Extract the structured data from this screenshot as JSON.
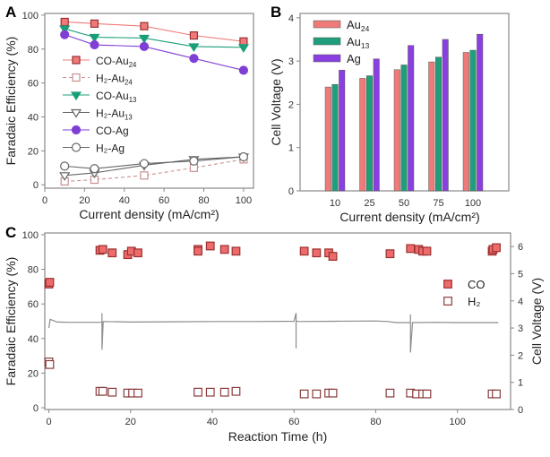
{
  "chart_data": [
    {
      "panel": "A",
      "type": "line",
      "xlabel": "Current density (mA/cm²)",
      "ylabel": "Faradaic Efficiency (%)",
      "xlim": [
        0,
        105
      ],
      "ylim": [
        -2,
        101
      ],
      "xticks": [
        0,
        20,
        40,
        60,
        80,
        100
      ],
      "yticks": [
        0,
        20,
        40,
        60,
        80,
        100
      ],
      "x": [
        10,
        25,
        50,
        75,
        100
      ],
      "legend_position": "center-left",
      "series": [
        {
          "name": "CO-Au",
          "sub": "24",
          "values": [
            96,
            95,
            93.5,
            88,
            84.5
          ],
          "color": "#f07a7a",
          "marker": "square-filled",
          "dashed": false
        },
        {
          "name": "H₂-Au",
          "sub": "24",
          "values": [
            2,
            3,
            5.5,
            10,
            15
          ],
          "color": "#c99090",
          "marker": "square-open",
          "dashed": true
        },
        {
          "name": "CO-Au",
          "sub": "13",
          "values": [
            92,
            87,
            86.5,
            81.5,
            81
          ],
          "color": "#1a9e7a",
          "marker": "triangle-filled",
          "dashed": false
        },
        {
          "name": "H₂-Au",
          "sub": "13",
          "values": [
            5.5,
            7,
            11.5,
            15,
            16.5
          ],
          "color": "#666666",
          "marker": "triangle-open",
          "dashed": false
        },
        {
          "name": "CO-Ag",
          "sub": "",
          "values": [
            88.5,
            82.5,
            81.5,
            74.5,
            67.5
          ],
          "color": "#7f3fd4",
          "marker": "circle-filled",
          "dashed": false
        },
        {
          "name": "H₂-Ag",
          "sub": "",
          "values": [
            11,
            9.5,
            12.5,
            14,
            16.5
          ],
          "color": "#666666",
          "marker": "circle-open",
          "dashed": false
        }
      ]
    },
    {
      "panel": "B",
      "type": "bar",
      "xlabel": "Current density (mA/cm²)",
      "ylabel": "Cell Voltage (V)",
      "ylim": [
        0,
        4.1
      ],
      "yticks": [
        0,
        1,
        2,
        3,
        4
      ],
      "categories": [
        "10",
        "25",
        "50",
        "75",
        "100"
      ],
      "legend_position": "top-left",
      "series": [
        {
          "name": "Au",
          "sub": "24",
          "values": [
            2.4,
            2.6,
            2.8,
            2.98,
            3.2
          ],
          "color": "#ee7b78"
        },
        {
          "name": "Au",
          "sub": "13",
          "values": [
            2.46,
            2.66,
            2.91,
            3.09,
            3.25
          ],
          "color": "#1f9e7c"
        },
        {
          "name": "Ag",
          "sub": "",
          "values": [
            2.79,
            3.05,
            3.36,
            3.5,
            3.62
          ],
          "color": "#8a3fe0"
        }
      ]
    },
    {
      "panel": "C",
      "type": "scatter",
      "xlabel": "Reaction Time (h)",
      "ylabel": "Faradaic Efficiency (%)",
      "ylabel_right": "Cell Voltage (V)",
      "xlim": [
        -1,
        113
      ],
      "ylim": [
        -1,
        101
      ],
      "ylim_right": [
        0,
        6.5
      ],
      "xticks": [
        0,
        20,
        40,
        60,
        80,
        100
      ],
      "yticks": [
        0,
        20,
        40,
        60,
        80,
        100
      ],
      "yticks_right": [
        0,
        1,
        2,
        3,
        4,
        5,
        6
      ],
      "legend_position": "right",
      "series": [
        {
          "name": "CO",
          "marker": "square-filled",
          "color": "#ee6b6b",
          "x": [
            0,
            0.2,
            12.5,
            13.2,
            15.5,
            19.3,
            20.2,
            21.8,
            36.5,
            36.5,
            39.5,
            43,
            45.8,
            62.5,
            65.5,
            68.5,
            69.5,
            83.5,
            88.5,
            90.5,
            91.5,
            92.5,
            108.5,
            108.7,
            109.5
          ],
          "y": [
            71.5,
            72.5,
            91,
            91.5,
            89.5,
            88.5,
            90.5,
            89.5,
            91.5,
            90.5,
            93.5,
            91.5,
            90.5,
            90.5,
            89.5,
            89.5,
            87.5,
            89,
            92,
            91.5,
            90.5,
            90.5,
            90.5,
            91.5,
            92.5
          ]
        },
        {
          "name": "H₂",
          "marker": "square-open",
          "color": "#8a3b3b",
          "x": [
            0,
            0.2,
            12.5,
            13.2,
            15.5,
            19.3,
            20.5,
            21.8,
            36.5,
            39.5,
            43,
            45.8,
            62.5,
            65.5,
            68.5,
            69.5,
            83.5,
            88.5,
            90,
            91.5,
            92.5,
            108.5,
            109.5
          ],
          "y": [
            26.5,
            25,
            9.5,
            9.5,
            9,
            8.5,
            8.5,
            8.5,
            9,
            9,
            9,
            9.5,
            8,
            8,
            8.5,
            8.5,
            8.5,
            8.5,
            8,
            8,
            8,
            8,
            8
          ]
        },
        {
          "name": "Cell Voltage",
          "axis": "right",
          "type": "line",
          "color": "#8c8c8c",
          "x": [
            0,
            0.3,
            1,
            2,
            5,
            10,
            13,
            13,
            13,
            13.3,
            20,
            30,
            40,
            50,
            60,
            60.5,
            60.5,
            60.5,
            61,
            70,
            80,
            83,
            85,
            88.5,
            88.5,
            88.5,
            89,
            95,
            100,
            105,
            110
          ],
          "y": [
            3.0,
            3.32,
            3.28,
            3.22,
            3.21,
            3.21,
            3.21,
            3.55,
            2.2,
            3.24,
            3.22,
            3.23,
            3.24,
            3.24,
            3.25,
            3.55,
            2.25,
            3.26,
            3.24,
            3.25,
            3.26,
            3.24,
            3.2,
            3.2,
            3.5,
            2.1,
            3.2,
            3.21,
            3.2,
            3.2,
            3.2
          ]
        }
      ]
    }
  ],
  "panels": {
    "a": "A",
    "b": "B",
    "c": "C"
  }
}
